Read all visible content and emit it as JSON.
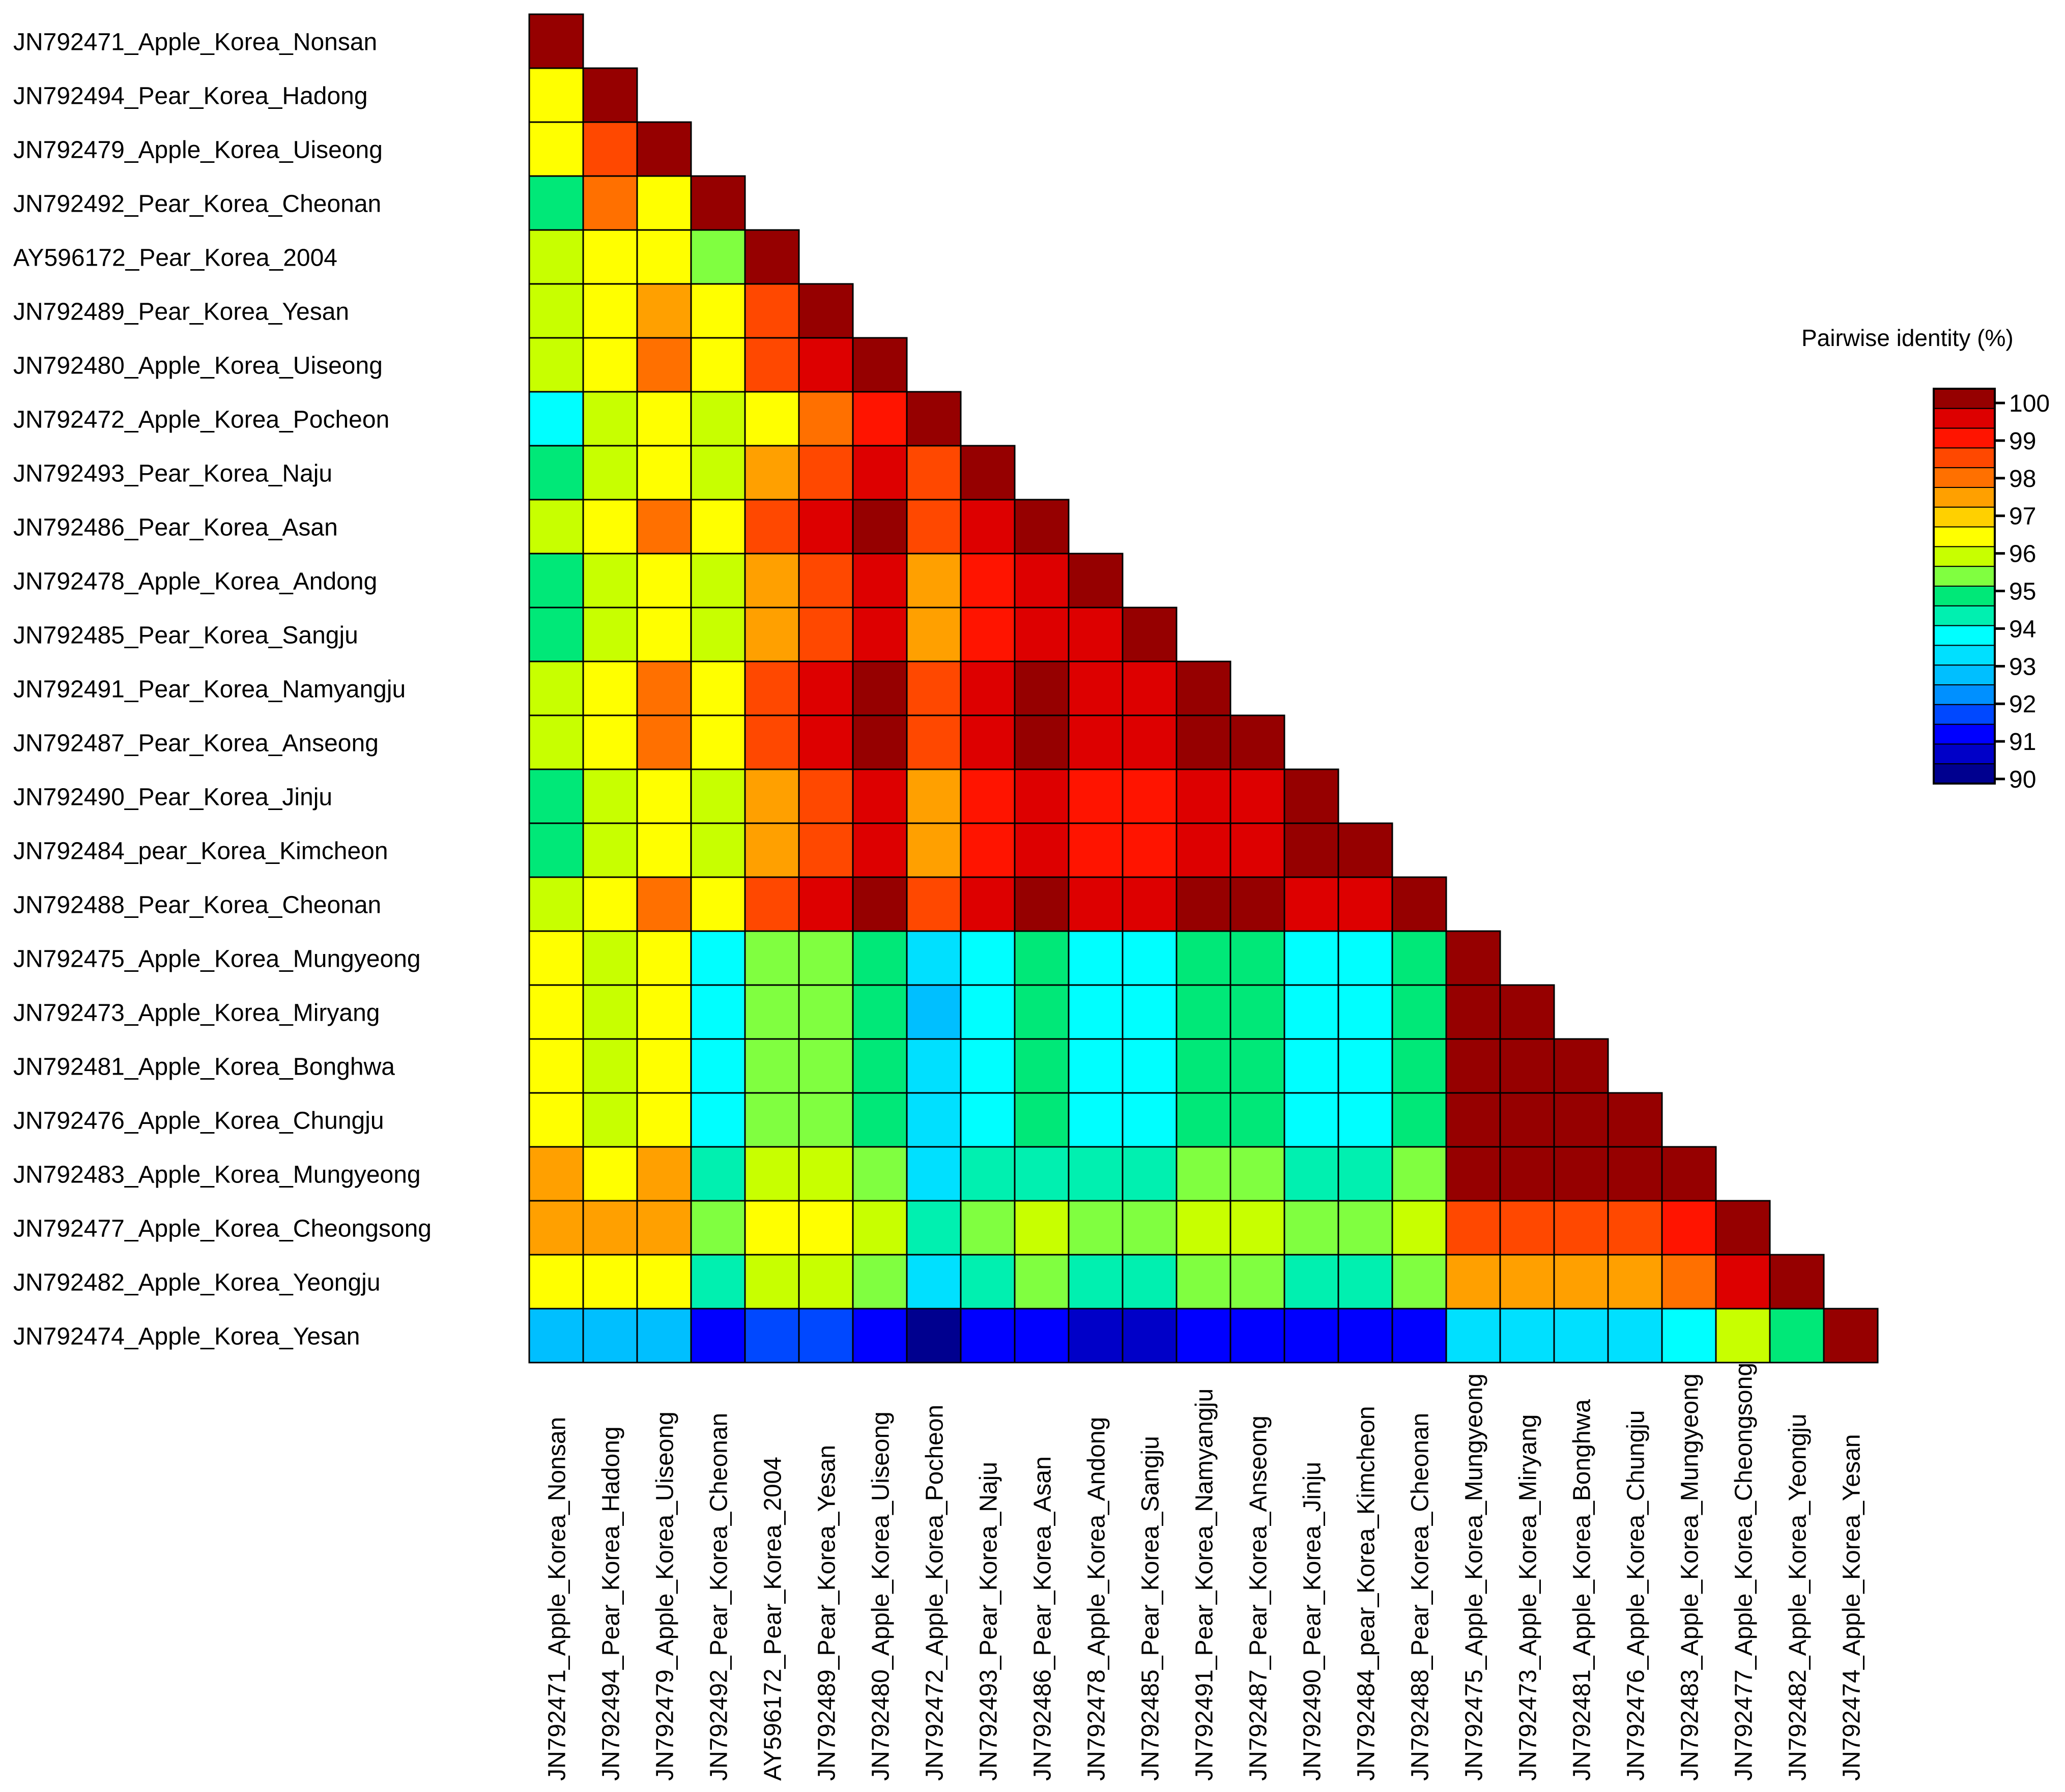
{
  "chart_data": {
    "type": "heatmap",
    "title": "",
    "legend_title": "Pairwise identity (%)",
    "legend_placement": "right",
    "sequences": [
      "JN792471_Apple_Korea_Nonsan",
      "JN792494_Pear_Korea_Hadong",
      "JN792479_Apple_Korea_Uiseong",
      "JN792492_Pear_Korea_Cheonan",
      "AY596172_Pear_Korea_2004",
      "JN792489_Pear_Korea_Yesan",
      "JN792480_Apple_Korea_Uiseong",
      "JN792472_Apple_Korea_Pocheon",
      "JN792493_Pear_Korea_Naju",
      "JN792486_Pear_Korea_Asan",
      "JN792478_Apple_Korea_Andong",
      "JN792485_Pear_Korea_Sangju",
      "JN792491_Pear_Korea_Namyangju",
      "JN792487_Pear_Korea_Anseong",
      "JN792490_Pear_Korea_Jinju",
      "JN792484_pear_Korea_Kimcheon",
      "JN792488_Pear_Korea_Cheonan",
      "JN792475_Apple_Korea_Mungyeong",
      "JN792473_Apple_Korea_Miryang",
      "JN792481_Apple_Korea_Bonghwa",
      "JN792476_Apple_Korea_Chungju",
      "JN792483_Apple_Korea_Mungyeong",
      "JN792477_Apple_Korea_Cheongsong",
      "JN792482_Apple_Korea_Yeongju",
      "JN792474_Apple_Korea_Yesan"
    ],
    "legend_ticks": [
      100,
      99,
      98,
      97,
      96,
      95,
      94,
      93,
      92,
      91,
      90
    ],
    "value_range": [
      89.5,
      100
    ],
    "colorscale": [
      "#00008f",
      "#0000c8",
      "#0000ff",
      "#0048ff",
      "#0090ff",
      "#00bfff",
      "#00e0ff",
      "#00ffff",
      "#00f0b0",
      "#00e878",
      "#80ff40",
      "#c8ff00",
      "#ffff00",
      "#ffd000",
      "#ffa000",
      "#ff7000",
      "#ff4800",
      "#ff1400",
      "#dd0000",
      "#960000"
    ],
    "identity_matrix": [
      [
        100
      ],
      [
        96.3,
        100
      ],
      [
        96.3,
        98.1,
        100
      ],
      [
        94.6,
        97.7,
        96.3,
        100
      ],
      [
        95.7,
        96.0,
        96.0,
        95.1,
        100
      ],
      [
        95.7,
        96.0,
        97.1,
        96.0,
        98.1,
        100
      ],
      [
        95.3,
        96.3,
        97.7,
        96.3,
        98.1,
        99.1,
        100
      ],
      [
        93.4,
        95.7,
        95.9,
        95.7,
        96.0,
        97.7,
        98.8,
        100
      ],
      [
        94.6,
        95.7,
        96.3,
        95.7,
        97.1,
        98.1,
        99.1,
        98.1,
        100
      ],
      [
        95.3,
        96.3,
        97.7,
        96.3,
        98.1,
        99.1,
        99.6,
        98.1,
        99.1,
        100
      ],
      [
        94.6,
        95.7,
        96.3,
        95.7,
        97.1,
        98.1,
        99.1,
        97.1,
        98.8,
        99.1,
        100
      ],
      [
        94.6,
        95.7,
        96.3,
        95.7,
        97.1,
        98.1,
        99.1,
        97.1,
        98.8,
        99.1,
        99.1,
        100
      ],
      [
        95.3,
        96.3,
        97.7,
        96.3,
        98.1,
        99.1,
        99.6,
        98.1,
        99.1,
        100,
        99.1,
        99.1,
        100
      ],
      [
        95.3,
        96.3,
        97.7,
        96.3,
        98.1,
        99.1,
        99.6,
        98.1,
        99.1,
        100,
        99.1,
        99.1,
        100,
        100
      ],
      [
        94.6,
        95.7,
        96.3,
        95.7,
        97.1,
        98.1,
        99.1,
        97.1,
        98.8,
        99.1,
        98.8,
        98.8,
        99.1,
        99.1,
        100
      ],
      [
        94.6,
        95.7,
        96.3,
        95.7,
        97.1,
        98.1,
        99.1,
        97.1,
        98.8,
        99.1,
        98.8,
        98.8,
        99.1,
        99.1,
        100,
        100
      ],
      [
        95.3,
        96.3,
        97.7,
        96.3,
        98.1,
        99.1,
        99.6,
        98.1,
        99.1,
        100,
        99.1,
        99.1,
        100,
        100,
        99.1,
        99.1,
        100
      ],
      [
        96.3,
        95.7,
        96.3,
        93.4,
        94.8,
        94.8,
        94.6,
        92.8,
        93.4,
        94.6,
        93.4,
        93.4,
        94.6,
        94.6,
        93.4,
        93.4,
        94.6,
        100
      ],
      [
        96.3,
        95.7,
        96.3,
        93.4,
        94.8,
        94.8,
        94.6,
        92.5,
        93.4,
        94.6,
        93.4,
        93.4,
        94.6,
        94.6,
        93.4,
        93.4,
        94.6,
        100,
        100
      ],
      [
        96.3,
        95.7,
        96.3,
        93.4,
        94.8,
        94.8,
        94.6,
        92.8,
        93.4,
        94.6,
        93.4,
        93.4,
        94.6,
        94.6,
        93.4,
        93.4,
        94.6,
        100,
        100,
        100
      ],
      [
        96.3,
        95.7,
        96.3,
        93.4,
        94.8,
        94.8,
        94.6,
        92.8,
        93.4,
        94.6,
        93.4,
        93.4,
        94.6,
        94.6,
        93.4,
        93.4,
        94.6,
        100,
        100,
        100,
        100
      ],
      [
        97.1,
        96.0,
        97.1,
        94.2,
        95.3,
        95.3,
        94.8,
        93.1,
        94.2,
        94.2,
        94.2,
        94.2,
        94.8,
        94.8,
        94.2,
        94.2,
        94.8,
        99.6,
        99.6,
        99.6,
        99.6,
        100
      ],
      [
        97.1,
        97.1,
        97.1,
        94.8,
        96.0,
        96.0,
        95.7,
        94.2,
        94.8,
        95.7,
        94.8,
        94.8,
        95.7,
        95.7,
        94.8,
        94.8,
        95.7,
        98.1,
        98.1,
        98.1,
        98.1,
        98.6,
        100
      ],
      [
        96.0,
        96.0,
        96.0,
        94.2,
        95.3,
        95.3,
        94.8,
        93.1,
        94.2,
        94.8,
        94.2,
        94.2,
        94.8,
        94.8,
        94.2,
        94.2,
        94.8,
        97.1,
        97.1,
        97.1,
        97.1,
        97.7,
        99.1,
        100
      ],
      [
        92.3,
        92.3,
        92.3,
        90.8,
        91.6,
        91.6,
        91.0,
        89.8,
        90.6,
        91.0,
        90.3,
        90.3,
        91.0,
        91.0,
        90.6,
        90.6,
        91.0,
        93.1,
        93.1,
        93.1,
        93.1,
        93.4,
        95.3,
        94.6,
        100
      ]
    ]
  }
}
